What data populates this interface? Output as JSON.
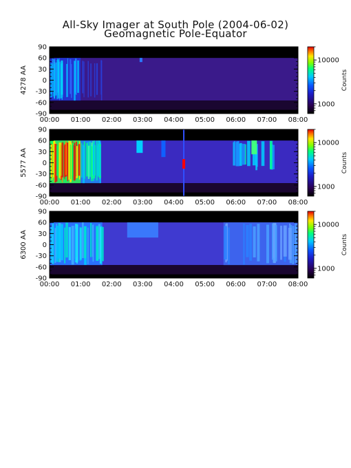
{
  "title": "All-Sky Imager at South Pole (2004-06-02)",
  "subtitle": "Geomagnetic Pole-Equator",
  "chart_data": [
    {
      "type": "heatmap",
      "ylabel": "4278 AA",
      "x_ticks": [
        "00:00",
        "01:00",
        "02:00",
        "03:00",
        "04:00",
        "05:00",
        "06:00",
        "07:00",
        "08:00"
      ],
      "x_range_hours": [
        0,
        8
      ],
      "y_ticks": [
        90,
        60,
        30,
        0,
        -30,
        -60,
        -90
      ],
      "ylim": [
        -90,
        90
      ],
      "data_band_lat": [
        -55,
        60
      ],
      "colorbar": {
        "label": "Counts",
        "scale": "log",
        "ticks": [
          10000,
          1000
        ],
        "tick_labels": [
          "10000",
          "1000"
        ],
        "range": [
          600,
          20000
        ]
      },
      "background_level": "dark purple (~700 counts)",
      "features": [
        {
          "t_start": 0.0,
          "t_end": 1.0,
          "description": "blue/cyan streaks on dark blue"
        },
        {
          "t_start": 1.0,
          "t_end": 1.7,
          "description": "faint blue streaks fading out"
        }
      ]
    },
    {
      "type": "heatmap",
      "ylabel": "5577 AA",
      "x_ticks": [
        "00:00",
        "01:00",
        "02:00",
        "03:00",
        "04:00",
        "05:00",
        "06:00",
        "07:00",
        "08:00"
      ],
      "x_range_hours": [
        0,
        8
      ],
      "y_ticks": [
        90,
        60,
        30,
        0,
        -30,
        -60,
        -90
      ],
      "ylim": [
        -90,
        90
      ],
      "data_band_lat": [
        -55,
        60
      ],
      "colorbar": {
        "label": "Counts",
        "scale": "log",
        "ticks": [
          10000,
          1000
        ],
        "tick_labels": [
          "10000",
          "1000"
        ],
        "range": [
          600,
          20000
        ]
      },
      "background_level": "blue (~1000 counts)",
      "features": [
        {
          "t_start": 0.0,
          "t_end": 1.0,
          "description": "intense red/yellow/green vertical bands (>10000 counts)"
        },
        {
          "t_start": 1.0,
          "t_end": 1.65,
          "description": "green/cyan bands"
        },
        {
          "t_start": 2.8,
          "t_end": 3.0,
          "description": "cyan patch near 60"
        },
        {
          "t_start": 4.3,
          "t_end": 4.32,
          "description": "narrow red spike near 0"
        },
        {
          "t_start": 5.9,
          "t_end": 7.2,
          "description": "cyan/green patches"
        }
      ]
    },
    {
      "type": "heatmap",
      "ylabel": "6300 AA",
      "x_ticks": [
        "00:00",
        "01:00",
        "02:00",
        "03:00",
        "04:00",
        "05:00",
        "06:00",
        "07:00",
        "08:00"
      ],
      "x_range_hours": [
        0,
        8
      ],
      "y_ticks": [
        90,
        60,
        30,
        0,
        -30,
        -60,
        -90
      ],
      "ylim": [
        -90,
        90
      ],
      "data_band_lat": [
        -55,
        60
      ],
      "colorbar": {
        "label": "Counts",
        "scale": "log",
        "ticks": [
          10000,
          1000
        ],
        "tick_labels": [
          "10000",
          "1000"
        ],
        "range": [
          600,
          20000
        ]
      },
      "background_level": "blue (~1200 counts)",
      "features": [
        {
          "t_start": 0.0,
          "t_end": 1.7,
          "description": "cyan/light-blue streaky emission"
        },
        {
          "t_start": 2.5,
          "t_end": 3.5,
          "description": "light-blue patch near 60"
        },
        {
          "t_start": 5.6,
          "t_end": 8.0,
          "description": "light-blue diffuse emission"
        }
      ]
    }
  ]
}
